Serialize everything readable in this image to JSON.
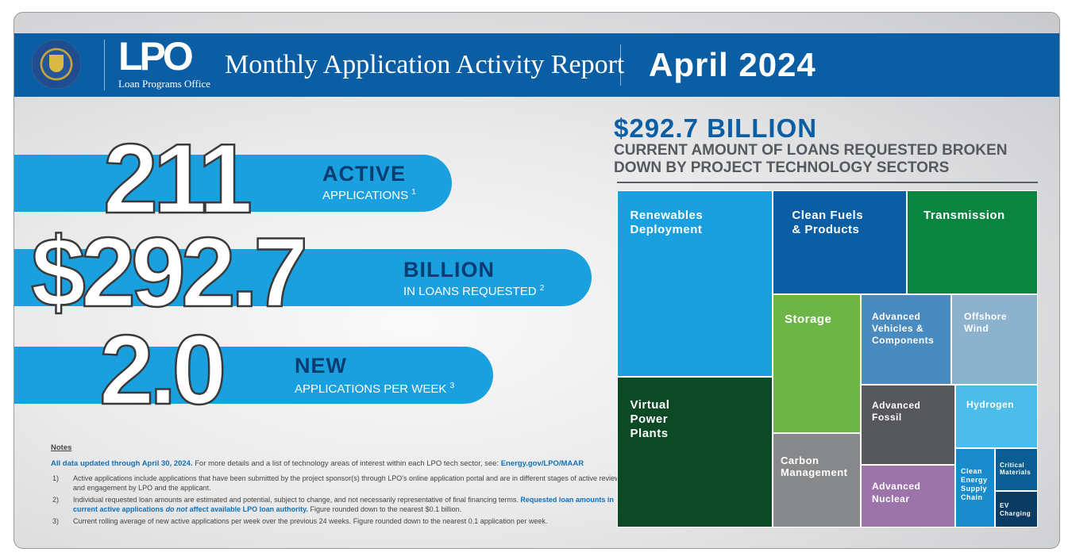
{
  "header": {
    "logo_text": "LPO",
    "logo_subtext": "Loan Programs Office",
    "title": "Monthly Application Activity Report",
    "date": "April 2024",
    "seal_text": "Department of Energy, United States of America"
  },
  "stats": [
    {
      "number": "211",
      "heading": "ACTIVE",
      "sub": "APPLICATIONS",
      "footnote": "1"
    },
    {
      "number": "$292.7",
      "heading": "BILLION",
      "sub": "IN LOANS REQUESTED",
      "footnote": "2"
    },
    {
      "number": "2.0",
      "heading": "NEW",
      "sub": "APPLICATIONS PER WEEK",
      "footnote": "3"
    }
  ],
  "notes": {
    "heading": "Notes",
    "summary_bold": "All data updated through April 30, 2024.",
    "summary_text": "For more details and a list of technology areas of interest within each LPO tech sector, see:",
    "summary_link": "Energy.gov/LPO/MAAR",
    "footnotes": [
      {
        "num": "1)",
        "text": "Active applications include applications that have been submitted by the project sponsor(s) through LPO's online application portal and are in different stages of active review and engagement by LPO and the applicant."
      },
      {
        "num": "2)",
        "text": "Individual requested loan amounts are estimated and potential, subject to change, and not necessarily representative of final financing terms.",
        "bold": "Requested loan amounts in current active applications",
        "italic": "do not",
        "bold2": "affect available LPO loan authority.",
        "tail": "Figure rounded down to the nearest $0.1 billion."
      },
      {
        "num": "3)",
        "text": "Current rolling average of new active applications per week over the previous 24 weeks. Figure rounded down to the nearest 0.1 application per week."
      }
    ]
  },
  "treemap": {
    "total": "$292.7 BILLION",
    "subtitle": "CURRENT AMOUNT OF LOANS REQUESTED BROKEN DOWN BY PROJECT TECHNOLOGY SECTORS",
    "sectors": [
      {
        "label": "Renewables Deployment",
        "color": "#1a9fdf"
      },
      {
        "label": "Virtual Power Plants",
        "color": "#0b4a25"
      },
      {
        "label": "Clean Fuels & Products",
        "color": "#0b5ea4"
      },
      {
        "label": "Transmission",
        "color": "#0b8440"
      },
      {
        "label": "Storage",
        "color": "#6db546"
      },
      {
        "label": "Carbon Management",
        "color": "#88898b"
      },
      {
        "label": "Advanced Vehicles & Components",
        "color": "#4a8bbf"
      },
      {
        "label": "Offshore Wind",
        "color": "#8db2cd"
      },
      {
        "label": "Advanced Fossil",
        "color": "#56575b"
      },
      {
        "label": "Hydrogen",
        "color": "#4bbde8"
      },
      {
        "label": "Advanced Nuclear",
        "color": "#9c74aa"
      },
      {
        "label": "Clean Energy Supply Chain",
        "color": "#1a8bcc"
      },
      {
        "label": "Critical Materials",
        "color": "#0b5e93"
      },
      {
        "label": "EV Charging",
        "color": "#0a3b63"
      }
    ]
  }
}
